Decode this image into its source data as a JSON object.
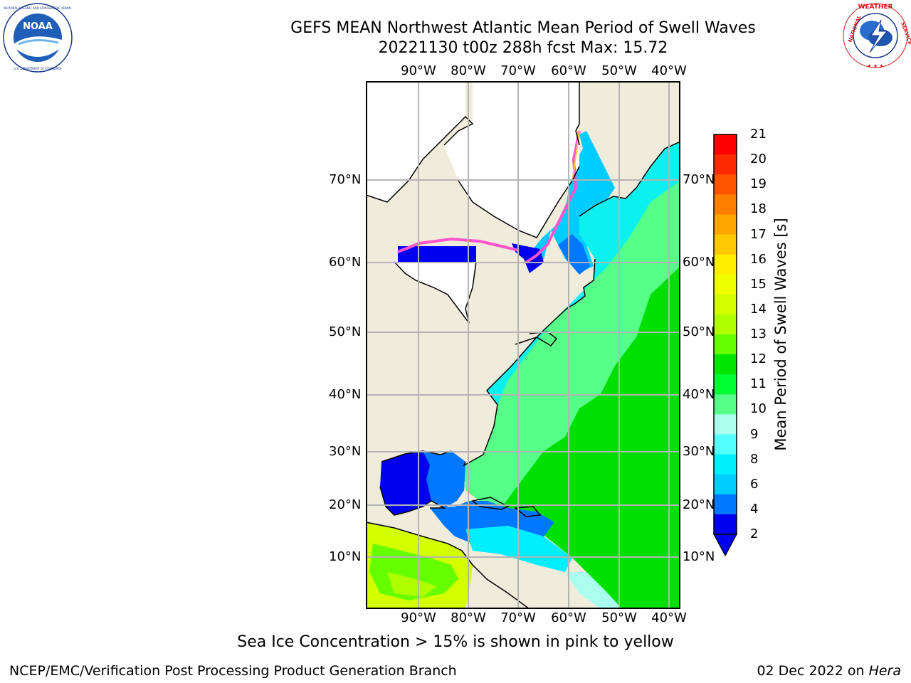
{
  "header": {
    "title_line1": "GEFS MEAN Northwest Atlantic Mean Period of Swell Waves",
    "title_line2": "20221130 t00z 288h fcst   Max: 15.72"
  },
  "logos": {
    "left": {
      "text": "NOAA",
      "ring_text": "NATIONAL OCEANIC AND ATMOSPHERIC ADMINISTRATION · U.S. DEPARTMENT OF COMMERCE"
    },
    "right": {
      "ring_text": "NATIONAL WEATHER SERVICE"
    }
  },
  "map": {
    "lon_labels": [
      "90°W",
      "80°W",
      "70°W",
      "60°W",
      "50°W",
      "40°W"
    ],
    "lat_labels": [
      "70°N",
      "60°N",
      "50°N",
      "40°N",
      "30°N",
      "20°N",
      "10°N"
    ],
    "colors": {
      "land": "#efecdc",
      "ice_free": "#ffffff",
      "grid": "#b4b4b4",
      "coast": "#000000",
      "ice": "#ff55cc"
    }
  },
  "colorbar": {
    "title": "Mean Period of Swell Waves [s]",
    "ticks": [
      "21",
      "20",
      "19",
      "18",
      "17",
      "16",
      "15",
      "14",
      "13",
      "12",
      "11",
      "10",
      "9",
      "8",
      "6",
      "4",
      "2"
    ],
    "colors_top_to_bottom": [
      "#ff0000",
      "#ff2a00",
      "#ff5500",
      "#ff7f00",
      "#ffa500",
      "#ffc800",
      "#ffee00",
      "#eeff00",
      "#d4ff00",
      "#b0ff00",
      "#66ff00",
      "#00e600",
      "#00ff33",
      "#55ff88",
      "#aaffee",
      "#55ffff",
      "#00eeff",
      "#00ccff",
      "#0077ff",
      "#0000ee"
    ],
    "under_color": "#0000ee"
  },
  "notes": {
    "ice_note": "Sea Ice Concentration > 15% is shown in pink to yellow"
  },
  "footer": {
    "left": "NCEP/EMC/Verification Post Processing Product Generation Branch",
    "right_date": "02 Dec 2022 on ",
    "right_host": "Hera"
  }
}
